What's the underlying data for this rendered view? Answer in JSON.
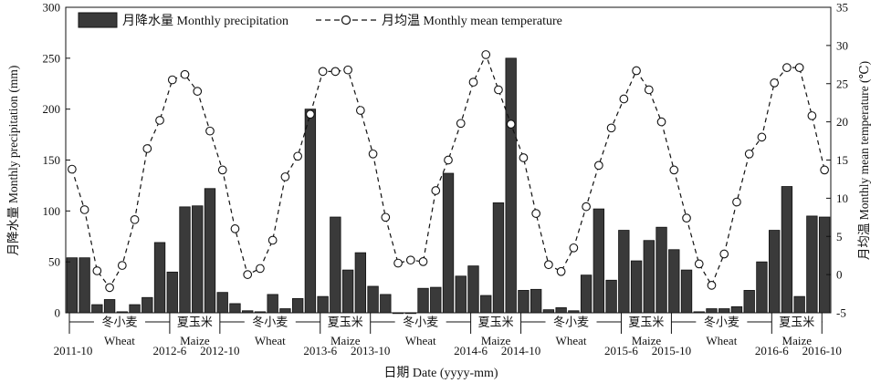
{
  "chart_data": {
    "type": "bar+line",
    "legend": {
      "bar": "月降水量 Monthly precipitation",
      "line": "月均温 Monthly mean temperature",
      "placement": "top"
    },
    "xlabel": "日期 Date (yyyy-mm)",
    "ylabel_left": "月降水量 Monthly precipitation (mm)",
    "ylabel_right": "月均温 Monthly mean temperature (℃)",
    "ylim_left": [
      0,
      300
    ],
    "ylim_right": [
      -5,
      35
    ],
    "yticks_left": [
      "0",
      "50",
      "100",
      "150",
      "200",
      "250",
      "300"
    ],
    "yticks_right": [
      "-5",
      "0",
      "5",
      "10",
      "15",
      "20",
      "25",
      "30",
      "35"
    ],
    "months": [
      "2011-10",
      "2011-11",
      "2011-12",
      "2012-01",
      "2012-02",
      "2012-03",
      "2012-04",
      "2012-05",
      "2012-06",
      "2012-07",
      "2012-08",
      "2012-09",
      "2012-10",
      "2012-11",
      "2012-12",
      "2013-01",
      "2013-02",
      "2013-03",
      "2013-04",
      "2013-05",
      "2013-06",
      "2013-07",
      "2013-08",
      "2013-09",
      "2013-10",
      "2013-11",
      "2013-12",
      "2014-01",
      "2014-02",
      "2014-03",
      "2014-04",
      "2014-05",
      "2014-06",
      "2014-07",
      "2014-08",
      "2014-09",
      "2014-10",
      "2014-11",
      "2014-12",
      "2015-01",
      "2015-02",
      "2015-03",
      "2015-04",
      "2015-05",
      "2015-06",
      "2015-07",
      "2015-08",
      "2015-09",
      "2015-10",
      "2015-11",
      "2015-12",
      "2016-01",
      "2016-02",
      "2016-03",
      "2016-04",
      "2016-05",
      "2016-06",
      "2016-07",
      "2016-08",
      "2016-09",
      "2016-10"
    ],
    "series": [
      {
        "name": "月降水量 Monthly precipitation",
        "type": "bar",
        "axis": "left",
        "color": "#3a3a3a",
        "values": [
          54,
          54,
          8,
          13,
          1,
          8,
          15,
          69,
          40,
          104,
          105,
          122,
          20,
          9,
          2,
          1,
          18,
          4,
          14,
          200,
          16,
          94,
          42,
          59,
          26,
          18,
          0,
          0,
          24,
          25,
          137,
          36,
          46,
          17,
          108,
          250,
          22,
          23,
          3,
          5,
          2,
          37,
          102,
          32,
          81,
          51,
          71,
          84,
          62,
          42,
          1,
          4,
          4,
          6,
          22,
          50,
          81,
          124,
          16,
          95,
          94
        ]
      },
      {
        "name": "月均温 Monthly mean temperature",
        "type": "line",
        "axis": "right",
        "style": "dashed",
        "marker": "open-circle",
        "values": [
          13.8,
          8.5,
          0.5,
          -1.7,
          1.2,
          7.2,
          16.5,
          20.2,
          25.5,
          26.2,
          24.0,
          18.8,
          13.7,
          6.0,
          0,
          0.8,
          4.5,
          12.8,
          15.5,
          21.0,
          26.6,
          26.6,
          26.8,
          21.5,
          15.8,
          7.5,
          1.5,
          1.9,
          1.7,
          11.0,
          15.0,
          19.8,
          25.2,
          28.8,
          24.2,
          19.7,
          15.3,
          8.0,
          1.3,
          0.4,
          3.5,
          8.9,
          14.3,
          19.2,
          23.0,
          26.7,
          24.2,
          20.0,
          13.7,
          7.4,
          1.4,
          -1.4,
          2.7,
          9.5,
          15.8,
          18.0,
          25.1,
          27.1,
          27.1,
          20.8,
          13.7
        ]
      }
    ],
    "date_labels": [
      {
        "label": "2011-10",
        "index": 0
      },
      {
        "label": "2012-6",
        "index": 8
      },
      {
        "label": "2012-10",
        "index": 12
      },
      {
        "label": "2013-6",
        "index": 20
      },
      {
        "label": "2013-10",
        "index": 24
      },
      {
        "label": "2014-6",
        "index": 32
      },
      {
        "label": "2014-10",
        "index": 36
      },
      {
        "label": "2015-6",
        "index": 44
      },
      {
        "label": "2015-10",
        "index": 48
      },
      {
        "label": "2016-6",
        "index": 56
      },
      {
        "label": "2016-10",
        "index": 60
      }
    ],
    "season_boundaries": [
      0,
      8,
      12,
      20,
      24,
      32,
      36,
      44,
      48,
      56,
      60
    ],
    "seasons": [
      {
        "zh": "冬小麦",
        "en": "Wheat",
        "from": 0,
        "to": 8
      },
      {
        "zh": "夏玉米",
        "en": "",
        "from": 8,
        "to": 12
      },
      {
        "zh": "冬小麦",
        "en": "Wheat",
        "from": 12,
        "to": 20
      },
      {
        "zh": "夏玉米",
        "en": "Maize",
        "from": 20,
        "to": 24
      },
      {
        "zh": "冬小麦",
        "en": "Wheat",
        "from": 24,
        "to": 32
      },
      {
        "zh": "夏玉米",
        "en": "Maize",
        "from": 32,
        "to": 36
      },
      {
        "zh": "冬小麦",
        "en": "Wheat",
        "from": 36,
        "to": 44
      },
      {
        "zh": "夏玉米",
        "en": "Maize",
        "from": 44,
        "to": 48
      },
      {
        "zh": "冬小麦",
        "en": "Wheat",
        "from": 48,
        "to": 56
      },
      {
        "zh": "夏玉米",
        "en": "Maize",
        "from": 56,
        "to": 60
      }
    ],
    "annotation_extra": {
      "text": "Maize",
      "index": 10
    }
  }
}
